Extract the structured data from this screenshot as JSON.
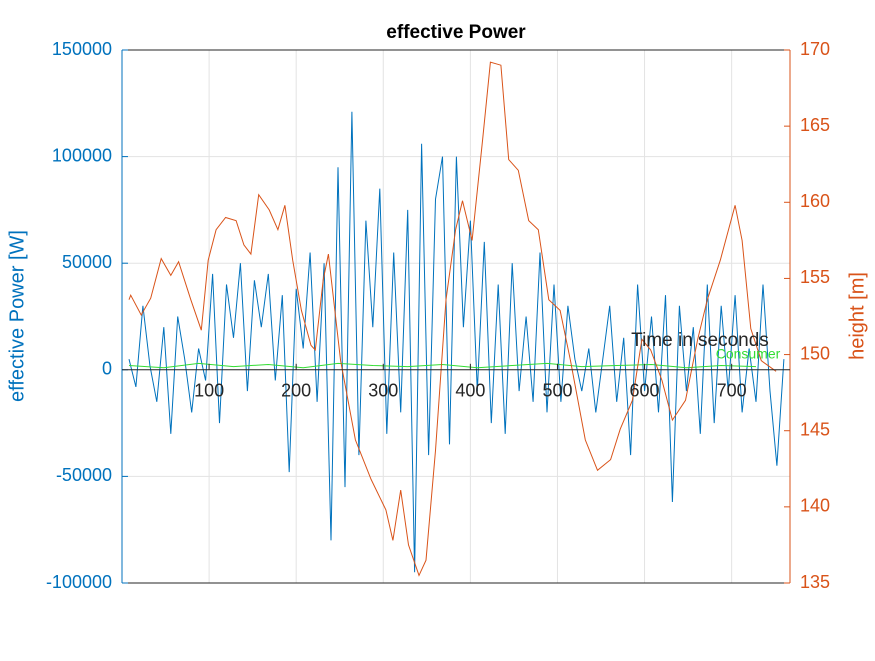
{
  "chart_data": {
    "type": "line",
    "title": "effective Power",
    "xlabel": "Time in seconds",
    "ylabel": "effective Power [W]",
    "y2label": "height [m]",
    "xlim": [
      0,
      767
    ],
    "xticks": [
      100,
      200,
      300,
      400,
      500,
      600,
      700
    ],
    "ylim": [
      -100000,
      150000
    ],
    "yticks": [
      -100000,
      -50000,
      0,
      50000,
      100000,
      150000
    ],
    "y2lim": [
      135,
      170
    ],
    "y2ticks": [
      135,
      140,
      145,
      150,
      155,
      160,
      165,
      170
    ],
    "grid": true,
    "ycolor": "#0072bd",
    "y2color": "#d95319",
    "series": [
      {
        "color": "#0072bd",
        "axis": "y",
        "x": [
          8,
          16,
          24,
          32,
          40,
          48,
          56,
          64,
          72,
          80,
          88,
          96,
          104,
          112,
          120,
          128,
          136,
          144,
          152,
          160,
          168,
          176,
          184,
          192,
          200,
          208,
          216,
          224,
          232,
          240,
          248,
          256,
          264,
          272,
          280,
          288,
          296,
          304,
          312,
          320,
          328,
          336,
          344,
          352,
          360,
          368,
          376,
          384,
          392,
          400,
          408,
          416,
          424,
          432,
          440,
          448,
          456,
          464,
          472,
          480,
          488,
          496,
          504,
          512,
          520,
          528,
          536,
          544,
          552,
          560,
          568,
          576,
          584,
          592,
          600,
          608,
          616,
          624,
          632,
          640,
          648,
          656,
          664,
          672,
          680,
          688,
          696,
          704,
          712,
          720,
          728,
          736,
          744,
          752,
          760
        ],
        "values": [
          5000,
          -8000,
          30000,
          2000,
          -15000,
          20000,
          -30000,
          25000,
          5000,
          -20000,
          10000,
          -5000,
          45000,
          -25000,
          40000,
          15000,
          50000,
          -10000,
          42000,
          20000,
          45000,
          -5000,
          35000,
          -48000,
          38000,
          10000,
          55000,
          -15000,
          50000,
          -80000,
          95000,
          -55000,
          121000,
          -40000,
          70000,
          20000,
          85000,
          -30000,
          55000,
          -20000,
          75000,
          -95000,
          106000,
          -40000,
          80000,
          100000,
          -35000,
          100000,
          20000,
          70000,
          -10000,
          60000,
          -25000,
          40000,
          -30000,
          50000,
          -10000,
          25000,
          -15000,
          55000,
          -20000,
          40000,
          -15000,
          30000,
          5000,
          -10000,
          10000,
          -20000,
          5000,
          30000,
          -15000,
          15000,
          -40000,
          40000,
          -10000,
          25000,
          -20000,
          35000,
          -62000,
          30000,
          -10000,
          20000,
          -30000,
          40000,
          -25000,
          30000,
          -10000,
          35000,
          -20000,
          10000,
          -15000,
          40000,
          -10000,
          -45000,
          5000
        ]
      },
      {
        "name": "Consumer",
        "color": "#33dd33",
        "axis": "y",
        "x": [
          8,
          48,
          88,
          128,
          168,
          208,
          248,
          288,
          328,
          368,
          408,
          448,
          488,
          528,
          568,
          608,
          648,
          688,
          728
        ],
        "values": [
          2000,
          1000,
          3000,
          1500,
          2500,
          1000,
          3000,
          2000,
          1500,
          2500,
          1000,
          2000,
          3000,
          1500,
          2000,
          2500,
          1000,
          2000,
          1500
        ]
      },
      {
        "color": "#d95319",
        "axis": "y2",
        "x": [
          8,
          10,
          22,
          33,
          45,
          56,
          65,
          79,
          91,
          99,
          108,
          119,
          131,
          140,
          148,
          157,
          169,
          179,
          187,
          196,
          206,
          217,
          222,
          231,
          237,
          251,
          268,
          286,
          303,
          311,
          320,
          329,
          341,
          349,
          360,
          372,
          383,
          391,
          402,
          414,
          423,
          435,
          444,
          455,
          467,
          478,
          490,
          503,
          515,
          532,
          546,
          561,
          572,
          586,
          597,
          607,
          620,
          632,
          647,
          661,
          672,
          687,
          704,
          712,
          722,
          734,
          751
        ],
        "values": [
          153.6,
          153.9,
          152.6,
          153.7,
          156.3,
          155.2,
          156.1,
          153.6,
          151.6,
          156.2,
          158.2,
          159,
          158.8,
          157.2,
          156.6,
          160.5,
          159.5,
          158.2,
          159.8,
          156.2,
          152.9,
          150.6,
          150.3,
          154.9,
          156.6,
          149.6,
          144.4,
          141.8,
          139.8,
          137.8,
          141.1,
          137.5,
          135.5,
          136.5,
          143.7,
          153.6,
          158.2,
          160.1,
          157.5,
          164.1,
          169.2,
          169,
          162.8,
          162.1,
          158.8,
          158.2,
          153.6,
          152.9,
          149.6,
          144.4,
          142.4,
          143.1,
          145.1,
          147,
          151,
          150.3,
          148.3,
          145.7,
          147,
          151,
          153.6,
          156.2,
          159.8,
          157.5,
          151.7,
          149.6,
          148.9
        ]
      }
    ]
  }
}
